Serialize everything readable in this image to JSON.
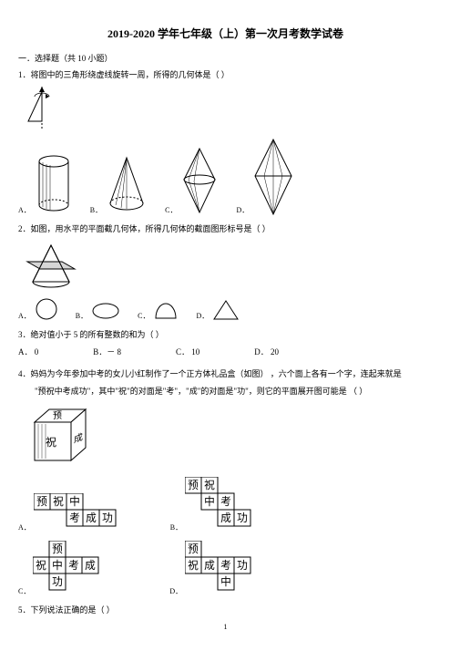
{
  "header": {
    "title": "2019-2020 学年七年级（上）第一次月考数学试卷"
  },
  "section1": {
    "heading": "一．选择题（共  10 小题）"
  },
  "q1": {
    "text": "1．将图中的三角形绕虚线旋转一周，所得的几何体是（        ）",
    "labels": {
      "A": "A．",
      "B": "B．",
      "C": "C．",
      "D": "D．"
    },
    "colors": {
      "stroke": "#000000",
      "fill": "#ffffff",
      "hatch": "#000000"
    }
  },
  "q2": {
    "text": "2．如图，用水平的平面截几何体，所得几何体的截面图形标号是（        ）",
    "labels": {
      "A": "A．",
      "B": "B．",
      "C": "C．",
      "D": "D．"
    },
    "colors": {
      "stroke": "#000000",
      "fill": "#ffffff",
      "shade": "#888888"
    }
  },
  "q3": {
    "text": "3．绝对值小于   5 的所有整数的和为（        ）",
    "A": "A． 0",
    "B": "B．－ 8",
    "C": "C． 10",
    "D": "D． 20"
  },
  "q4": {
    "text1": "4．妈妈为今年参加中考的女儿小红制作了一个正方体礼品盒（如图）    ，六个面上各有一个字，连起来就是",
    "text2": "  \"预祝中考成功\"，其中\"祝\"的对面是\"考\"，\"成\"的对面是\"功\"，则它的平面展开图可能是  （     ）",
    "labels": {
      "A": "A．",
      "B": "B．",
      "C": "C．",
      "D": "D．"
    },
    "chars": {
      "yu": "预",
      "zhu": "祝",
      "zhong": "中",
      "kao": "考",
      "cheng": "成",
      "gong": "功"
    },
    "cell": 18,
    "colors": {
      "stroke": "#000000",
      "fill": "#ffffff"
    }
  },
  "q5": {
    "text": "5．下列说法正确的是（        ）"
  },
  "page": {
    "num": "1"
  }
}
